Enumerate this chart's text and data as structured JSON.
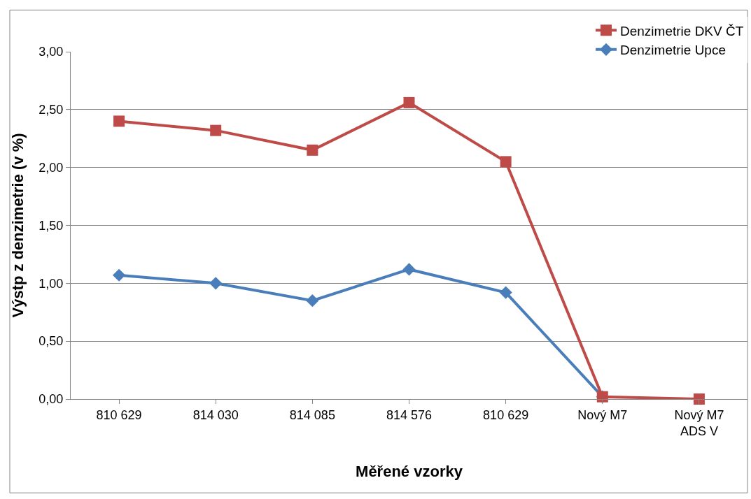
{
  "chart_data": {
    "type": "line",
    "xlabel": "Měřené vzorky",
    "ylabel": "Výstp z denzimetrie (v %)",
    "categories": [
      "810 629",
      "814 030",
      "814 085",
      "814 576",
      "810 629",
      "Nový M7",
      "Nový M7 ADS V"
    ],
    "series": [
      {
        "name": "Denzimetrie Upce",
        "color": "#4a7ebb",
        "marker": "diamond",
        "values": [
          1.07,
          1.0,
          0.85,
          1.12,
          0.92,
          0.02,
          null
        ]
      },
      {
        "name": "Denzimetrie DKV ČT",
        "color": "#be4b48",
        "marker": "square",
        "values": [
          2.4,
          2.32,
          2.15,
          2.56,
          2.05,
          0.02,
          0.0
        ]
      }
    ],
    "ylim": [
      0,
      3
    ],
    "yticks": [
      {
        "value": 0,
        "label": "0,00"
      },
      {
        "value": 0.5,
        "label": "0,50"
      },
      {
        "value": 1,
        "label": "1,00"
      },
      {
        "value": 1.5,
        "label": "1,50"
      },
      {
        "value": 2,
        "label": "2,00"
      },
      {
        "value": 2.5,
        "label": "2,50"
      },
      {
        "value": 3,
        "label": "3,00"
      }
    ],
    "grid": "y",
    "legend": "top right",
    "line_style": "solid"
  }
}
